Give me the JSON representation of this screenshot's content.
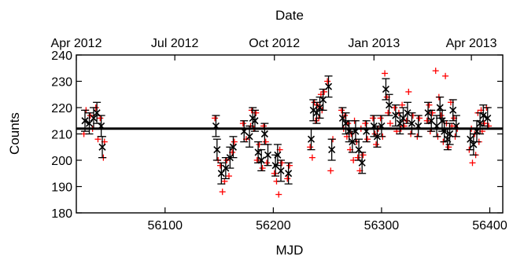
{
  "chart_data": {
    "type": "scatter",
    "xlabel": "MJD",
    "ylabel": "Counts",
    "top_axis_label": "Date",
    "xlim": [
      56018,
      56412
    ],
    "ylim": [
      180,
      240
    ],
    "x_ticks": [
      56100,
      56200,
      56300,
      56400
    ],
    "y_ticks": [
      180,
      190,
      200,
      210,
      220,
      230,
      240
    ],
    "top_ticks": [
      {
        "label": "Apr 2012",
        "mjd": 56018
      },
      {
        "label": "Jul 2012",
        "mjd": 56109
      },
      {
        "label": "Oct 2012",
        "mjd": 56201
      },
      {
        "label": "Jan 2013",
        "mjd": 56293
      },
      {
        "label": "Apr 2013",
        "mjd": 56383
      }
    ],
    "reference_line": {
      "y": 212
    },
    "colors": {
      "averages": "#000000",
      "individual": "#ff0000"
    },
    "grid": false,
    "series": [
      {
        "values": [
          {
            "x": 56026,
            "y": 215,
            "err": 4
          },
          {
            "x": 56030,
            "y": 214,
            "err": 4
          },
          {
            "x": 56034,
            "y": 216,
            "err": 4
          },
          {
            "x": 56037,
            "y": 218,
            "err": 4
          },
          {
            "x": 56041,
            "y": 213,
            "err": 4
          },
          {
            "x": 56042,
            "y": 205,
            "err": 4
          },
          {
            "x": 56147,
            "y": 213,
            "err": 4
          },
          {
            "x": 56148,
            "y": 204,
            "err": 4
          },
          {
            "x": 56152,
            "y": 195,
            "err": 4
          },
          {
            "x": 56156,
            "y": 197,
            "err": 4
          },
          {
            "x": 56160,
            "y": 201,
            "err": 4
          },
          {
            "x": 56163,
            "y": 205,
            "err": 4
          },
          {
            "x": 56173,
            "y": 211,
            "err": 4
          },
          {
            "x": 56178,
            "y": 209,
            "err": 4
          },
          {
            "x": 56181,
            "y": 216,
            "err": 4
          },
          {
            "x": 56183,
            "y": 215,
            "err": 4
          },
          {
            "x": 56186,
            "y": 203,
            "err": 4
          },
          {
            "x": 56189,
            "y": 200,
            "err": 4
          },
          {
            "x": 56192,
            "y": 210,
            "err": 4
          },
          {
            "x": 56195,
            "y": 202,
            "err": 4
          },
          {
            "x": 56202,
            "y": 198,
            "err": 4
          },
          {
            "x": 56204,
            "y": 202,
            "err": 4
          },
          {
            "x": 56207,
            "y": 196,
            "err": 4
          },
          {
            "x": 56214,
            "y": 195,
            "err": 4
          },
          {
            "x": 56235,
            "y": 208,
            "err": 4
          },
          {
            "x": 56237,
            "y": 219,
            "err": 4
          },
          {
            "x": 56240,
            "y": 218,
            "err": 4
          },
          {
            "x": 56243,
            "y": 220,
            "err": 4
          },
          {
            "x": 56246,
            "y": 223,
            "err": 4
          },
          {
            "x": 56251,
            "y": 228,
            "err": 4
          },
          {
            "x": 56254,
            "y": 204,
            "err": 4
          },
          {
            "x": 56264,
            "y": 216,
            "err": 4
          },
          {
            "x": 56267,
            "y": 214,
            "err": 4
          },
          {
            "x": 56270,
            "y": 211,
            "err": 4
          },
          {
            "x": 56273,
            "y": 207,
            "err": 4
          },
          {
            "x": 56276,
            "y": 211,
            "err": 4
          },
          {
            "x": 56279,
            "y": 204,
            "err": 4
          },
          {
            "x": 56282,
            "y": 199,
            "err": 4
          },
          {
            "x": 56286,
            "y": 211,
            "err": 4
          },
          {
            "x": 56293,
            "y": 213,
            "err": 4
          },
          {
            "x": 56296,
            "y": 209,
            "err": 4
          },
          {
            "x": 56300,
            "y": 213,
            "err": 4
          },
          {
            "x": 56304,
            "y": 227,
            "err": 4
          },
          {
            "x": 56307,
            "y": 221,
            "err": 4
          },
          {
            "x": 56313,
            "y": 217,
            "err": 4
          },
          {
            "x": 56317,
            "y": 214,
            "err": 4
          },
          {
            "x": 56320,
            "y": 216,
            "err": 4
          },
          {
            "x": 56324,
            "y": 218,
            "err": 4
          },
          {
            "x": 56328,
            "y": 214,
            "err": 4
          },
          {
            "x": 56334,
            "y": 213,
            "err": 4
          },
          {
            "x": 56343,
            "y": 218,
            "err": 4
          },
          {
            "x": 56346,
            "y": 215,
            "err": 4
          },
          {
            "x": 56351,
            "y": 213,
            "err": 4
          },
          {
            "x": 56354,
            "y": 220,
            "err": 4
          },
          {
            "x": 56356,
            "y": 215,
            "err": 4
          },
          {
            "x": 56358,
            "y": 211,
            "err": 4
          },
          {
            "x": 56361,
            "y": 208,
            "err": 4
          },
          {
            "x": 56363,
            "y": 210,
            "err": 4
          },
          {
            "x": 56366,
            "y": 219,
            "err": 4
          },
          {
            "x": 56369,
            "y": 213,
            "err": 4
          },
          {
            "x": 56382,
            "y": 208,
            "err": 4
          },
          {
            "x": 56385,
            "y": 206,
            "err": 4
          },
          {
            "x": 56388,
            "y": 211,
            "err": 4
          },
          {
            "x": 56391,
            "y": 214,
            "err": 4
          },
          {
            "x": 56394,
            "y": 217,
            "err": 4
          },
          {
            "x": 56398,
            "y": 216,
            "err": 4
          }
        ]
      },
      {
        "values": [
          [
            56025,
            210
          ],
          [
            56027,
            219
          ],
          [
            56031,
            217
          ],
          [
            56033,
            212
          ],
          [
            56036,
            220
          ],
          [
            56038,
            208
          ],
          [
            56040,
            216
          ],
          [
            56043,
            201
          ],
          [
            56044,
            207
          ],
          [
            56146,
            216
          ],
          [
            56149,
            200
          ],
          [
            56151,
            198
          ],
          [
            56153,
            188
          ],
          [
            56155,
            192
          ],
          [
            56157,
            200
          ],
          [
            56159,
            194
          ],
          [
            56162,
            203
          ],
          [
            56164,
            207
          ],
          [
            56172,
            214
          ],
          [
            56175,
            208
          ],
          [
            56179,
            213
          ],
          [
            56180,
            219
          ],
          [
            56182,
            212
          ],
          [
            56184,
            218
          ],
          [
            56185,
            200
          ],
          [
            56187,
            206
          ],
          [
            56190,
            197
          ],
          [
            56191,
            213
          ],
          [
            56193,
            207
          ],
          [
            56194,
            199
          ],
          [
            56201,
            195
          ],
          [
            56203,
            192
          ],
          [
            56205,
            187
          ],
          [
            56206,
            204
          ],
          [
            56208,
            199
          ],
          [
            56213,
            193
          ],
          [
            56215,
            198
          ],
          [
            56234,
            205
          ],
          [
            56236,
            201
          ],
          [
            56238,
            222
          ],
          [
            56239,
            215
          ],
          [
            56241,
            221
          ],
          [
            56242,
            216
          ],
          [
            56244,
            225
          ],
          [
            56245,
            219
          ],
          [
            56247,
            226
          ],
          [
            56250,
            230
          ],
          [
            56253,
            196
          ],
          [
            56255,
            208
          ],
          [
            56263,
            219
          ],
          [
            56265,
            212
          ],
          [
            56266,
            217
          ],
          [
            56268,
            209
          ],
          [
            56269,
            214
          ],
          [
            56271,
            204
          ],
          [
            56272,
            210
          ],
          [
            56274,
            200
          ],
          [
            56275,
            215
          ],
          [
            56277,
            207
          ],
          [
            56278,
            201
          ],
          [
            56280,
            196
          ],
          [
            56281,
            212
          ],
          [
            56283,
            202
          ],
          [
            56285,
            214
          ],
          [
            56287,
            208
          ],
          [
            56292,
            216
          ],
          [
            56294,
            210
          ],
          [
            56295,
            206
          ],
          [
            56297,
            212
          ],
          [
            56299,
            216
          ],
          [
            56301,
            209
          ],
          [
            56303,
            233
          ],
          [
            56305,
            224
          ],
          [
            56306,
            218
          ],
          [
            56308,
            214
          ],
          [
            56312,
            220
          ],
          [
            56314,
            211
          ],
          [
            56316,
            218
          ],
          [
            56318,
            212
          ],
          [
            56319,
            221
          ],
          [
            56321,
            213
          ],
          [
            56323,
            215
          ],
          [
            56325,
            226
          ],
          [
            56327,
            210
          ],
          [
            56329,
            217
          ],
          [
            56333,
            209
          ],
          [
            56335,
            216
          ],
          [
            56342,
            215
          ],
          [
            56344,
            221
          ],
          [
            56345,
            211
          ],
          [
            56347,
            218
          ],
          [
            56350,
            234
          ],
          [
            56352,
            209
          ],
          [
            56353,
            224
          ],
          [
            56355,
            217
          ],
          [
            56357,
            207
          ],
          [
            56359,
            232
          ],
          [
            56360,
            214
          ],
          [
            56362,
            205
          ],
          [
            56364,
            222
          ],
          [
            56365,
            213
          ],
          [
            56367,
            216
          ],
          [
            56368,
            209
          ],
          [
            56370,
            212
          ],
          [
            56381,
            204
          ],
          [
            56383,
            212
          ],
          [
            56384,
            199
          ],
          [
            56386,
            210
          ],
          [
            56387,
            202
          ],
          [
            56389,
            218
          ],
          [
            56390,
            207
          ],
          [
            56392,
            219
          ],
          [
            56393,
            211
          ],
          [
            56395,
            214
          ],
          [
            56397,
            220
          ],
          [
            56399,
            213
          ]
        ]
      }
    ]
  }
}
